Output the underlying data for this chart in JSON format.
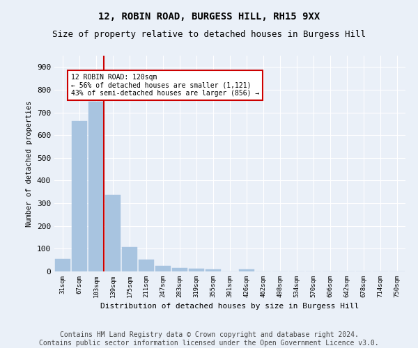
{
  "title1": "12, ROBIN ROAD, BURGESS HILL, RH15 9XX",
  "title2": "Size of property relative to detached houses in Burgess Hill",
  "xlabel": "Distribution of detached houses by size in Burgess Hill",
  "ylabel": "Number of detached properties",
  "bar_labels": [
    "31sqm",
    "67sqm",
    "103sqm",
    "139sqm",
    "175sqm",
    "211sqm",
    "247sqm",
    "283sqm",
    "319sqm",
    "355sqm",
    "391sqm",
    "426sqm",
    "462sqm",
    "498sqm",
    "534sqm",
    "570sqm",
    "606sqm",
    "642sqm",
    "678sqm",
    "714sqm",
    "750sqm"
  ],
  "bar_values": [
    55,
    662,
    748,
    338,
    108,
    52,
    25,
    14,
    12,
    8,
    0,
    9,
    0,
    0,
    0,
    0,
    0,
    0,
    0,
    0,
    0
  ],
  "bar_color": "#a8c4e0",
  "bar_edge_color": "#a8c4e0",
  "vline_x": 2.45,
  "vline_color": "#cc0000",
  "annotation_text": "12 ROBIN ROAD: 120sqm\n← 56% of detached houses are smaller (1,121)\n43% of semi-detached houses are larger (856) →",
  "annotation_box_color": "#ffffff",
  "annotation_box_edge_color": "#cc0000",
  "ylim": [
    0,
    950
  ],
  "yticks": [
    0,
    100,
    200,
    300,
    400,
    500,
    600,
    700,
    800,
    900
  ],
  "bg_color": "#eaf0f8",
  "plot_bg_color": "#eaf0f8",
  "footer1": "Contains HM Land Registry data © Crown copyright and database right 2024.",
  "footer2": "Contains public sector information licensed under the Open Government Licence v3.0.",
  "title_fontsize": 10,
  "subtitle_fontsize": 9,
  "footer_fontsize": 7
}
